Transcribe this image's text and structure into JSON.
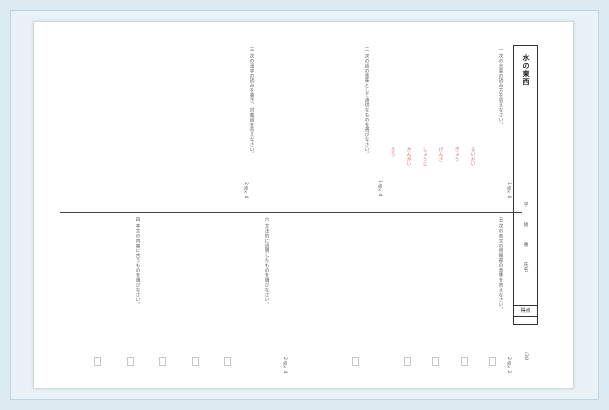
{
  "worksheet": {
    "title": "水の東西",
    "score_label": "得点",
    "score_total": "/30",
    "name_labels": [
      "学",
      "組",
      "番",
      "氏名"
    ],
    "top_questions": [
      "一 次の言葉の読み方を答えなさい。",
      "二 次の語の意味として適切なものを選びなさい。",
      "三 次の漢字の読みを書き、対義語を答えなさい。",
      "四 本文の内容に合うものを選びなさい。"
    ],
    "bottom_questions": [
      "五 次の各文の傍線部の意味を答えなさい。",
      "六 文法的に説明したものを選びなさい。",
      "七 次の語の品詞名を答えなさい。"
    ],
    "points": [
      "1点×4",
      "1点×6",
      "2点×4",
      "2点×2",
      "2点×4"
    ],
    "red_answers": [
      "ろう",
      "かんがい",
      "しょうじ",
      "げんさ",
      "ぎょう",
      "るいだい"
    ]
  }
}
